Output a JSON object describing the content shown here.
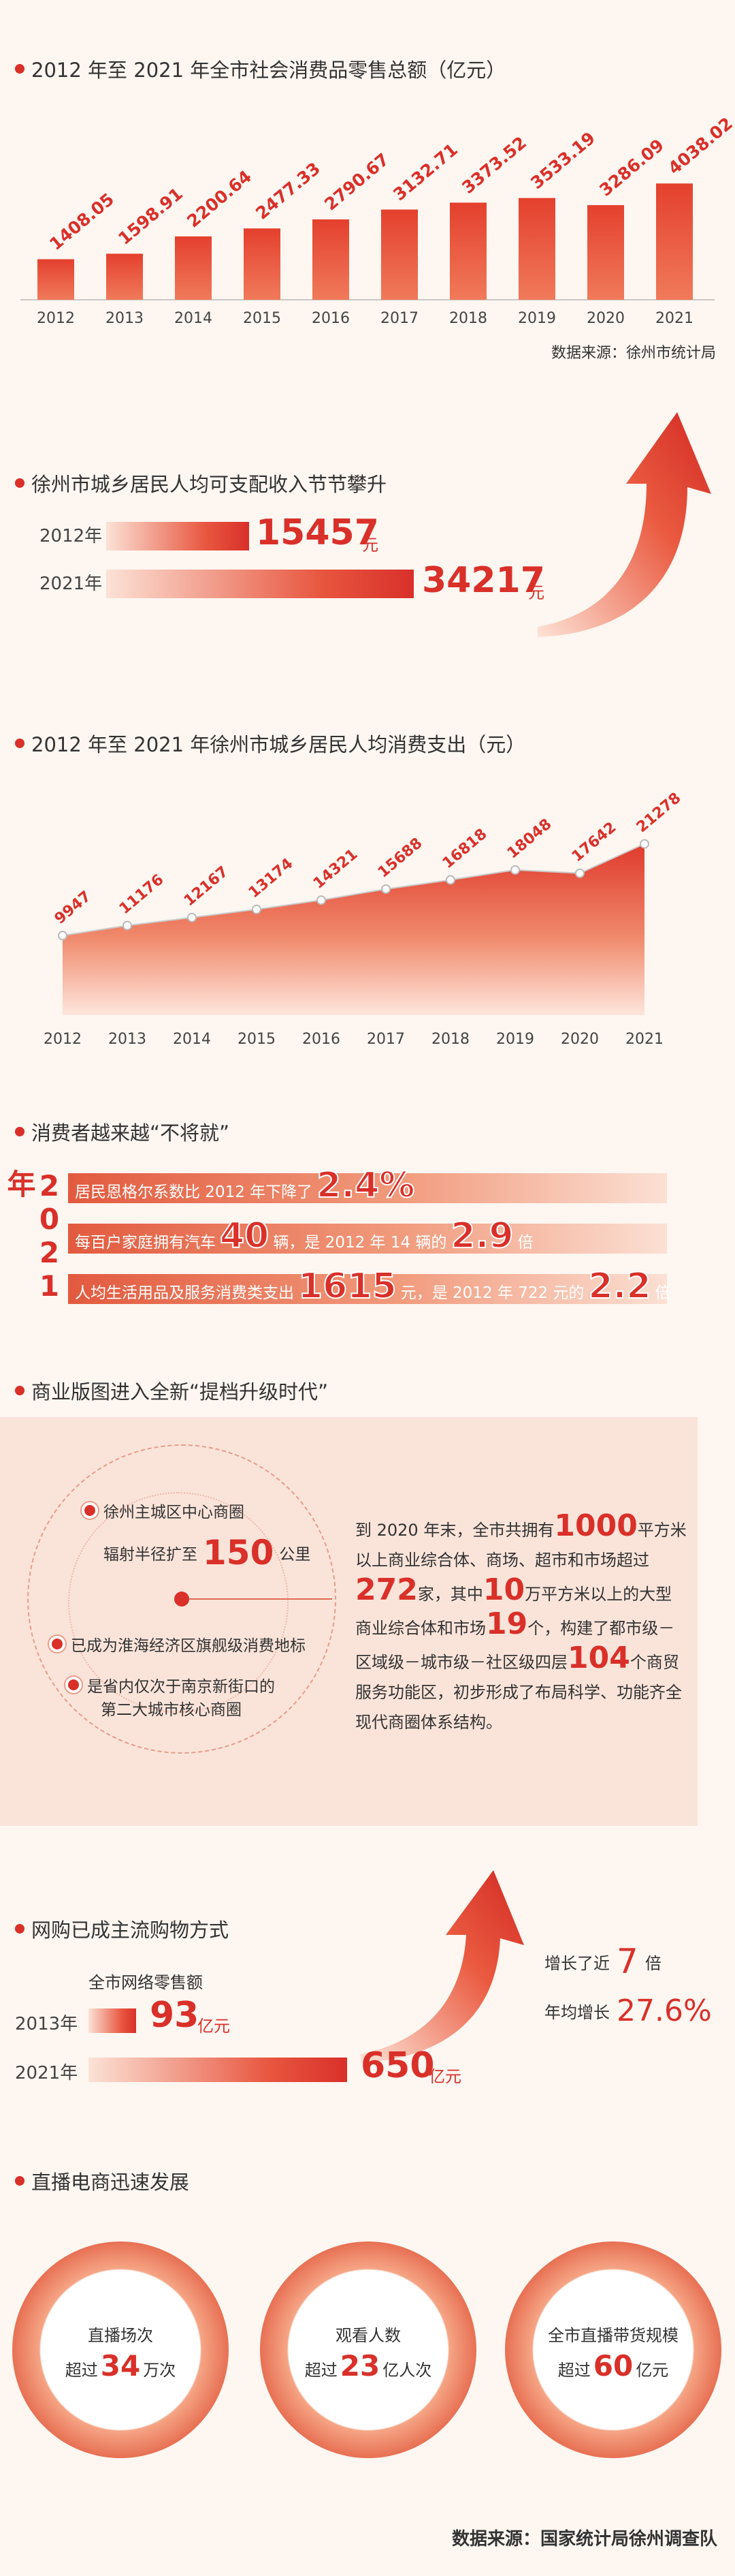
{
  "colors": {
    "accent": "#d9302a",
    "background": "#fdf6f1",
    "panel": "#fae4da"
  },
  "retail_section": {
    "title": "2012 年至 2021 年全市社会消费品零售总额（亿元）",
    "source": "数据来源：徐州市统计局"
  },
  "income_section": {
    "title": "徐州市城乡居民人均可支配收入节节攀升",
    "unit": "元",
    "rows": [
      {
        "year": "2012年",
        "value": "15457"
      },
      {
        "year": "2021年",
        "value": "34217"
      }
    ]
  },
  "spending_section": {
    "title": "2012 年至 2021 年徐州市城乡居民人均消费支出（元）"
  },
  "consumer_section": {
    "title": "消费者越来越“不将就”",
    "year_label": "2021年",
    "line1": {
      "text": "居民恩格尔系数比 2012 年下降了",
      "pct": "2.4%"
    },
    "line2": {
      "a": "每百户家庭拥有汽车",
      "n1": "40",
      "b": "辆，是 2012 年 14 辆的",
      "n2": "2.9",
      "c": "倍"
    },
    "line3": {
      "a": "人均生活用品及服务消费类支出",
      "n1": "1615",
      "b": "元，是 2012 年 722 元的",
      "n2": "2.2",
      "c": "倍"
    }
  },
  "commerce_section": {
    "title": "商业版图进入全新“提档升级时代”",
    "bullet1": "徐州主城区中心商圈",
    "radius_a": "辐射半径扩至",
    "radius_num": "150",
    "radius_unit": "公里",
    "bullet2": "已成为淮海经济区旗舰级消费地标",
    "bullet3a": "是省内仅次于南京新街口的",
    "bullet3b": "第二大城市核心商圈",
    "para": {
      "p1": "到 2020 年末，全市共拥有",
      "n1": "1000",
      "p2": "平方米以上商业综合体、商场、超市和市场超过",
      "n2": "272",
      "p3": "家，其中",
      "n3": "10",
      "p4": "万平方米以上的大型商业综合体和市场",
      "n4": "19",
      "p5": "个，构建了都市级－区域级－城市级－社区级四层",
      "n5": "104",
      "p6": "个商贸服务功能区，初步形成了布局科学、功能齐全现代商圈体系结构。"
    }
  },
  "online_section": {
    "title": "网购已成主流购物方式",
    "label": "全市网络零售额",
    "rows": [
      {
        "year": "2013年",
        "value": "93",
        "unit": "亿元"
      },
      {
        "year": "2021年",
        "value": "650",
        "unit": "亿元"
      }
    ],
    "growth_a": "增长了近",
    "growth_num": "7",
    "growth_unit": "倍",
    "annual_a": "年均增长",
    "annual_pct": "27.6%"
  },
  "live_section": {
    "title": "直播电商迅速发展",
    "circles": [
      {
        "label": "直播场次",
        "pre": "超过",
        "num": "34",
        "unit": "万次"
      },
      {
        "label": "观看人数",
        "pre": "超过",
        "num": "23",
        "unit": "亿人次"
      },
      {
        "label": "全市直播带货规模",
        "pre": "超过",
        "num": "60",
        "unit": "亿元"
      }
    ],
    "source": "数据来源：国家统计局徐州调查队"
  },
  "chart_data": [
    {
      "type": "bar",
      "title": "2012 年至 2021 年全市社会消费品零售总额（亿元）",
      "categories": [
        "2012",
        "2013",
        "2014",
        "2015",
        "2016",
        "2017",
        "2018",
        "2019",
        "2020",
        "2021"
      ],
      "values": [
        1408.05,
        1598.91,
        2200.64,
        2477.33,
        2790.67,
        3132.71,
        3373.52,
        3533.19,
        3286.09,
        4038.02
      ],
      "labels": [
        "1408.05",
        "1598.91",
        "2200.64",
        "2477.33",
        "2790.67",
        "3132.71",
        "3373.52",
        "3533.19",
        "3286.09",
        "4038.02"
      ],
      "ylim": [
        0,
        4400
      ]
    },
    {
      "type": "area",
      "title": "2012 年至 2021 年徐州市城乡居民人均消费支出（元）",
      "categories": [
        "2012",
        "2013",
        "2014",
        "2015",
        "2016",
        "2017",
        "2018",
        "2019",
        "2020",
        "2021"
      ],
      "values": [
        9947,
        11176,
        12167,
        13174,
        14321,
        15688,
        16818,
        18048,
        17642,
        21278
      ],
      "ylim": [
        0,
        23000
      ]
    },
    {
      "type": "bar",
      "categories": [
        "2012年",
        "2021年"
      ],
      "values": [
        15457,
        34217
      ]
    },
    {
      "type": "bar",
      "categories": [
        "2013年",
        "2021年"
      ],
      "values": [
        93,
        650
      ]
    }
  ]
}
